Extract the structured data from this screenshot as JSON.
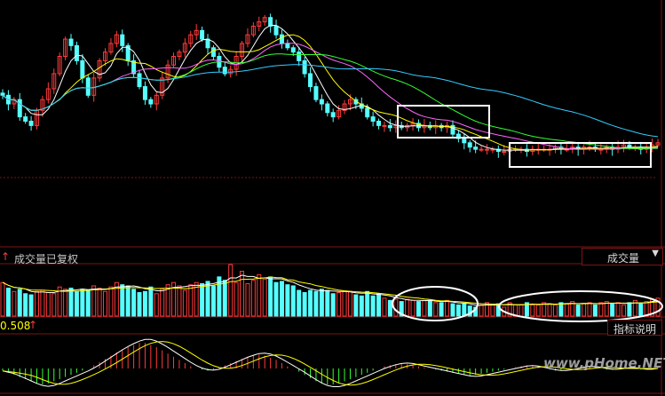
{
  "colors": {
    "background": "#000000",
    "up": "#ff3b3b",
    "down": "#55ffff",
    "ma5": "#ffffff",
    "ma10": "#ffff00",
    "ma20": "#ff66ff",
    "ma30": "#33ff33",
    "ma60": "#33ccff",
    "grid": "#7a1515",
    "highlight": "#ffffff",
    "watermark": "#b8b8b8"
  },
  "volume_panel": {
    "arrow": "↑",
    "title": "成交量已复权",
    "dropdown_label": "成交量",
    "dropdown_icon": "chevron-down-icon"
  },
  "indicator_panel": {
    "value": "0.508",
    "arrow": "↑",
    "button_label": "指标说明"
  },
  "watermark": "www.pHome.NET",
  "chart_data": [
    {
      "type": "candlestick",
      "panel": "price",
      "series": [
        {
          "name": "close",
          "values": [
            62,
            58,
            60,
            52,
            50,
            48,
            55,
            60,
            65,
            72,
            80,
            88,
            85,
            78,
            70,
            62,
            70,
            78,
            82,
            86,
            90,
            85,
            78,
            72,
            66,
            60,
            58,
            62,
            70,
            76,
            80,
            82,
            86,
            90,
            92,
            88,
            84,
            80,
            75,
            72,
            74,
            80,
            86,
            90,
            94,
            96,
            98,
            94,
            90,
            86,
            84,
            82,
            78,
            72,
            66,
            60,
            58,
            54,
            52,
            55,
            58,
            60,
            58,
            56,
            52,
            50,
            48,
            48,
            47,
            48,
            47,
            48,
            49,
            47,
            48,
            47,
            48,
            47,
            48,
            44,
            42,
            40,
            38,
            37,
            37,
            37,
            37,
            36,
            36,
            37,
            37,
            37,
            36,
            37,
            37,
            37,
            37,
            38,
            37,
            37,
            38,
            37,
            38,
            38,
            37,
            37,
            38,
            37,
            38,
            39,
            38,
            38,
            37,
            38,
            39,
            40
          ]
        }
      ],
      "annotations": [
        "highlight-box-consolidation-1",
        "highlight-box-consolidation-2"
      ]
    },
    {
      "type": "bar",
      "panel": "volume",
      "series": [
        {
          "name": "volume",
          "values": [
            30,
            25,
            22,
            24,
            20,
            19,
            22,
            23,
            21,
            20,
            26,
            24,
            25,
            22,
            24,
            23,
            27,
            25,
            22,
            26,
            30,
            28,
            27,
            24,
            21,
            22,
            26,
            20,
            24,
            28,
            30,
            27,
            23,
            28,
            30,
            29,
            31,
            27,
            35,
            32,
            46,
            30,
            40,
            29,
            32,
            37,
            33,
            35,
            30,
            31,
            28,
            27,
            23,
            21,
            23,
            22,
            24,
            23,
            20,
            21,
            22,
            22,
            19,
            18,
            22,
            18,
            20,
            16,
            14,
            15,
            13,
            15,
            14,
            13,
            14,
            14,
            12,
            12,
            14,
            11,
            10,
            11,
            9,
            8,
            10,
            12,
            10,
            11,
            8,
            12,
            10,
            10,
            12,
            10,
            10,
            12,
            11,
            10,
            12,
            11,
            13,
            10,
            11,
            12,
            10,
            12,
            13,
            11,
            12,
            10,
            12,
            14,
            11,
            13,
            15,
            16
          ]
        }
      ],
      "annotations": [
        "ellipse-low-volume-1",
        "ellipse-low-volume-2"
      ]
    },
    {
      "type": "bar",
      "panel": "macd",
      "series": [
        {
          "name": "histogram",
          "values": [
            -2,
            -4,
            -6,
            -8,
            -10,
            -12,
            -14,
            -15,
            -14,
            -12,
            -10,
            -8,
            -6,
            -4,
            -2,
            0,
            3,
            6,
            9,
            12,
            15,
            18,
            20,
            22,
            24,
            24,
            22,
            20,
            17,
            14,
            11,
            8,
            5,
            2,
            0,
            -1,
            -2,
            -1,
            1,
            3,
            5,
            7,
            9,
            11,
            12,
            13,
            12,
            10,
            8,
            5,
            2,
            0,
            -3,
            -6,
            -9,
            -12,
            -14,
            -15,
            -15,
            -14,
            -12,
            -10,
            -8,
            -6,
            -4,
            -2,
            0,
            2,
            3,
            4,
            5,
            4,
            3,
            2,
            1,
            0,
            -1,
            -2,
            -3,
            -4,
            -5,
            -6,
            -7,
            -6,
            -5,
            -4,
            -3,
            -2,
            -1,
            0,
            1,
            2,
            3,
            2,
            1,
            0,
            -1,
            -2,
            -2,
            -1,
            0,
            1,
            2,
            2,
            1,
            0,
            -1,
            -1,
            0,
            1,
            1,
            0,
            -1,
            -1,
            0,
            1
          ]
        }
      ]
    }
  ]
}
